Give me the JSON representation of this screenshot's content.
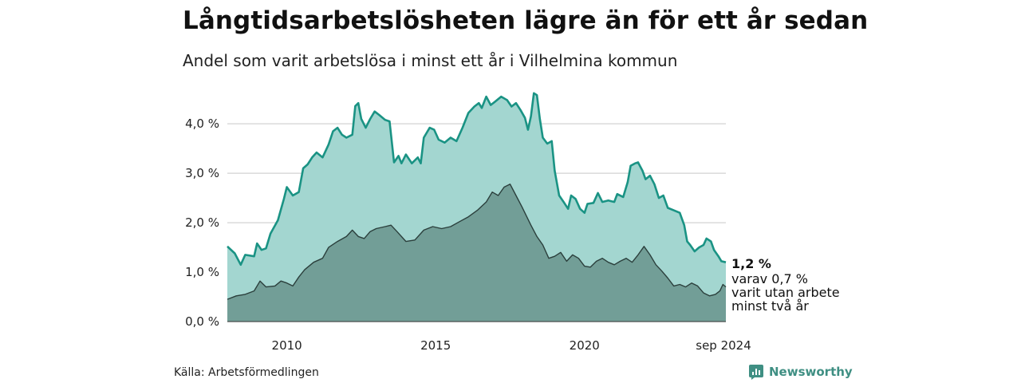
{
  "title": "Långtidsarbetslösheten lägre än för ett år sedan",
  "subtitle": "Andel som varit arbetslösa i minst ett år i Vilhelmina kommun",
  "source": "Källa: Arbetsförmedlingen",
  "brand": "Newsworthy",
  "colors": {
    "upper_fill": "#a3d6d0",
    "upper_line": "#1a9384",
    "lower_fill": "#729e97",
    "lower_line": "#2b3f3c",
    "grid": "#d9d9d9",
    "brand": "#3f8f83"
  },
  "annotation": {
    "value": "1,2 %",
    "lines": [
      "varav 0,7 %",
      "varit utan arbete",
      "minst två år"
    ]
  },
  "chart_data": {
    "type": "area",
    "title": "Långtidsarbetslösheten lägre än för ett år sedan",
    "subtitle": "Andel som varit arbetslösa i minst ett år i Vilhelmina kommun",
    "xlabel": "",
    "ylabel": "",
    "ylim": [
      0,
      4.6
    ],
    "xlim": [
      2008.0,
      2024.75
    ],
    "grid": true,
    "x_ticks": [
      {
        "value": 2010,
        "label": "2010"
      },
      {
        "value": 2015,
        "label": "2015"
      },
      {
        "value": 2020,
        "label": "2020"
      },
      {
        "value": 2024.67,
        "label": "sep 2024"
      }
    ],
    "y_ticks": [
      {
        "value": 0,
        "label": "0,0 %"
      },
      {
        "value": 1,
        "label": "1,0 %"
      },
      {
        "value": 2,
        "label": "2,0 %"
      },
      {
        "value": 3,
        "label": "3,0 %"
      },
      {
        "value": 4,
        "label": "4,0 %"
      }
    ],
    "series": [
      {
        "key": "upper",
        "points": [
          [
            2008.0,
            1.52
          ],
          [
            2008.25,
            1.38
          ],
          [
            2008.45,
            1.15
          ],
          [
            2008.6,
            1.35
          ],
          [
            2008.9,
            1.32
          ],
          [
            2009.0,
            1.58
          ],
          [
            2009.15,
            1.45
          ],
          [
            2009.3,
            1.48
          ],
          [
            2009.45,
            1.78
          ],
          [
            2009.7,
            2.05
          ],
          [
            2009.9,
            2.48
          ],
          [
            2010.0,
            2.72
          ],
          [
            2010.2,
            2.55
          ],
          [
            2010.4,
            2.62
          ],
          [
            2010.55,
            3.1
          ],
          [
            2010.7,
            3.18
          ],
          [
            2010.85,
            3.32
          ],
          [
            2011.0,
            3.42
          ],
          [
            2011.2,
            3.32
          ],
          [
            2011.4,
            3.58
          ],
          [
            2011.55,
            3.85
          ],
          [
            2011.7,
            3.92
          ],
          [
            2011.85,
            3.78
          ],
          [
            2012.0,
            3.72
          ],
          [
            2012.2,
            3.78
          ],
          [
            2012.3,
            4.36
          ],
          [
            2012.4,
            4.42
          ],
          [
            2012.5,
            4.1
          ],
          [
            2012.65,
            3.92
          ],
          [
            2012.8,
            4.1
          ],
          [
            2012.95,
            4.25
          ],
          [
            2013.1,
            4.18
          ],
          [
            2013.3,
            4.08
          ],
          [
            2013.45,
            4.05
          ],
          [
            2013.6,
            3.22
          ],
          [
            2013.75,
            3.35
          ],
          [
            2013.85,
            3.2
          ],
          [
            2014.0,
            3.38
          ],
          [
            2014.2,
            3.2
          ],
          [
            2014.4,
            3.32
          ],
          [
            2014.5,
            3.2
          ],
          [
            2014.6,
            3.72
          ],
          [
            2014.8,
            3.92
          ],
          [
            2014.95,
            3.88
          ],
          [
            2015.1,
            3.68
          ],
          [
            2015.3,
            3.62
          ],
          [
            2015.5,
            3.72
          ],
          [
            2015.7,
            3.65
          ],
          [
            2015.9,
            3.92
          ],
          [
            2016.1,
            4.22
          ],
          [
            2016.3,
            4.35
          ],
          [
            2016.45,
            4.42
          ],
          [
            2016.55,
            4.32
          ],
          [
            2016.7,
            4.55
          ],
          [
            2016.85,
            4.38
          ],
          [
            2017.0,
            4.45
          ],
          [
            2017.2,
            4.55
          ],
          [
            2017.4,
            4.48
          ],
          [
            2017.55,
            4.35
          ],
          [
            2017.7,
            4.42
          ],
          [
            2017.85,
            4.28
          ],
          [
            2018.0,
            4.12
          ],
          [
            2018.1,
            3.88
          ],
          [
            2018.2,
            4.15
          ],
          [
            2018.3,
            4.62
          ],
          [
            2018.4,
            4.58
          ],
          [
            2018.5,
            4.1
          ],
          [
            2018.6,
            3.72
          ],
          [
            2018.75,
            3.6
          ],
          [
            2018.9,
            3.65
          ],
          [
            2019.0,
            3.05
          ],
          [
            2019.15,
            2.55
          ],
          [
            2019.3,
            2.42
          ],
          [
            2019.45,
            2.28
          ],
          [
            2019.55,
            2.55
          ],
          [
            2019.7,
            2.48
          ],
          [
            2019.85,
            2.28
          ],
          [
            2020.0,
            2.2
          ],
          [
            2020.1,
            2.38
          ],
          [
            2020.3,
            2.4
          ],
          [
            2020.45,
            2.6
          ],
          [
            2020.6,
            2.42
          ],
          [
            2020.8,
            2.45
          ],
          [
            2021.0,
            2.42
          ],
          [
            2021.1,
            2.58
          ],
          [
            2021.3,
            2.52
          ],
          [
            2021.45,
            2.82
          ],
          [
            2021.55,
            3.15
          ],
          [
            2021.7,
            3.2
          ],
          [
            2021.8,
            3.22
          ],
          [
            2021.95,
            3.05
          ],
          [
            2022.05,
            2.88
          ],
          [
            2022.2,
            2.95
          ],
          [
            2022.35,
            2.78
          ],
          [
            2022.5,
            2.5
          ],
          [
            2022.65,
            2.55
          ],
          [
            2022.8,
            2.3
          ],
          [
            2023.0,
            2.25
          ],
          [
            2023.2,
            2.2
          ],
          [
            2023.35,
            1.95
          ],
          [
            2023.45,
            1.62
          ],
          [
            2023.55,
            1.55
          ],
          [
            2023.7,
            1.42
          ],
          [
            2023.85,
            1.5
          ],
          [
            2024.0,
            1.55
          ],
          [
            2024.1,
            1.68
          ],
          [
            2024.25,
            1.62
          ],
          [
            2024.35,
            1.45
          ],
          [
            2024.5,
            1.32
          ],
          [
            2024.6,
            1.22
          ],
          [
            2024.75,
            1.2
          ]
        ]
      },
      {
        "key": "lower",
        "points": [
          [
            2008.0,
            0.45
          ],
          [
            2008.3,
            0.52
          ],
          [
            2008.6,
            0.55
          ],
          [
            2008.9,
            0.62
          ],
          [
            2009.1,
            0.82
          ],
          [
            2009.3,
            0.7
          ],
          [
            2009.6,
            0.72
          ],
          [
            2009.8,
            0.82
          ],
          [
            2010.0,
            0.78
          ],
          [
            2010.2,
            0.72
          ],
          [
            2010.4,
            0.9
          ],
          [
            2010.6,
            1.05
          ],
          [
            2010.9,
            1.2
          ],
          [
            2011.2,
            1.28
          ],
          [
            2011.4,
            1.5
          ],
          [
            2011.7,
            1.62
          ],
          [
            2012.0,
            1.72
          ],
          [
            2012.2,
            1.85
          ],
          [
            2012.4,
            1.72
          ],
          [
            2012.6,
            1.68
          ],
          [
            2012.8,
            1.82
          ],
          [
            2013.0,
            1.88
          ],
          [
            2013.3,
            1.92
          ],
          [
            2013.5,
            1.95
          ],
          [
            2013.7,
            1.82
          ],
          [
            2014.0,
            1.62
          ],
          [
            2014.3,
            1.65
          ],
          [
            2014.6,
            1.85
          ],
          [
            2014.9,
            1.92
          ],
          [
            2015.2,
            1.88
          ],
          [
            2015.5,
            1.92
          ],
          [
            2015.8,
            2.02
          ],
          [
            2016.1,
            2.12
          ],
          [
            2016.4,
            2.25
          ],
          [
            2016.7,
            2.42
          ],
          [
            2016.9,
            2.62
          ],
          [
            2017.1,
            2.55
          ],
          [
            2017.3,
            2.72
          ],
          [
            2017.5,
            2.78
          ],
          [
            2017.7,
            2.55
          ],
          [
            2017.9,
            2.32
          ],
          [
            2018.2,
            1.95
          ],
          [
            2018.4,
            1.72
          ],
          [
            2018.6,
            1.55
          ],
          [
            2018.8,
            1.28
          ],
          [
            2019.0,
            1.32
          ],
          [
            2019.2,
            1.4
          ],
          [
            2019.4,
            1.22
          ],
          [
            2019.6,
            1.35
          ],
          [
            2019.8,
            1.28
          ],
          [
            2020.0,
            1.12
          ],
          [
            2020.2,
            1.1
          ],
          [
            2020.4,
            1.22
          ],
          [
            2020.6,
            1.28
          ],
          [
            2020.8,
            1.2
          ],
          [
            2021.0,
            1.15
          ],
          [
            2021.2,
            1.22
          ],
          [
            2021.4,
            1.28
          ],
          [
            2021.6,
            1.2
          ],
          [
            2021.8,
            1.35
          ],
          [
            2022.0,
            1.52
          ],
          [
            2022.2,
            1.35
          ],
          [
            2022.4,
            1.15
          ],
          [
            2022.6,
            1.02
          ],
          [
            2022.8,
            0.88
          ],
          [
            2023.0,
            0.72
          ],
          [
            2023.2,
            0.75
          ],
          [
            2023.4,
            0.7
          ],
          [
            2023.6,
            0.78
          ],
          [
            2023.8,
            0.72
          ],
          [
            2024.0,
            0.58
          ],
          [
            2024.2,
            0.52
          ],
          [
            2024.4,
            0.55
          ],
          [
            2024.55,
            0.62
          ],
          [
            2024.65,
            0.75
          ],
          [
            2024.75,
            0.7
          ]
        ]
      }
    ]
  }
}
